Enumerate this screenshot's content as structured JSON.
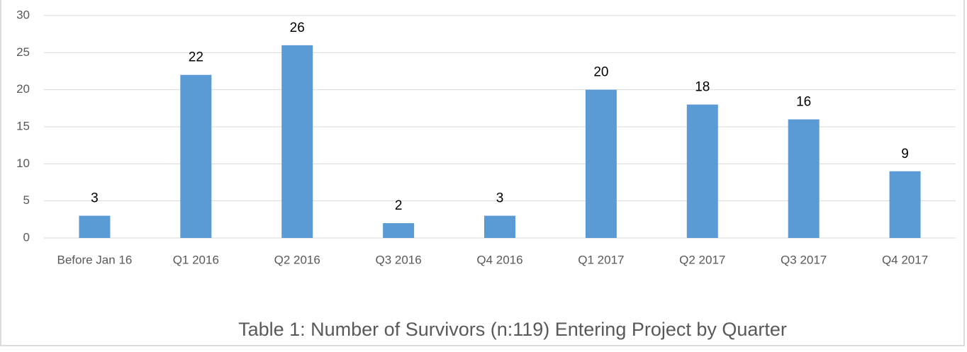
{
  "chart_data": {
    "type": "bar",
    "caption": "Table 1: Number of Survivors (n:119) Entering Project by Quarter",
    "categories": [
      "Before Jan 16",
      "Q1 2016",
      "Q2 2016",
      "Q3 2016",
      "Q4 2016",
      "Q1 2017",
      "Q2 2017",
      "Q3 2017",
      "Q4 2017"
    ],
    "values": [
      3,
      22,
      26,
      2,
      3,
      20,
      18,
      16,
      9
    ],
    "color": "#5b9bd5",
    "ylim": [
      0,
      30
    ],
    "yticks": [
      0,
      5,
      10,
      15,
      20,
      25,
      30
    ],
    "grid": true,
    "data_labels": true
  }
}
